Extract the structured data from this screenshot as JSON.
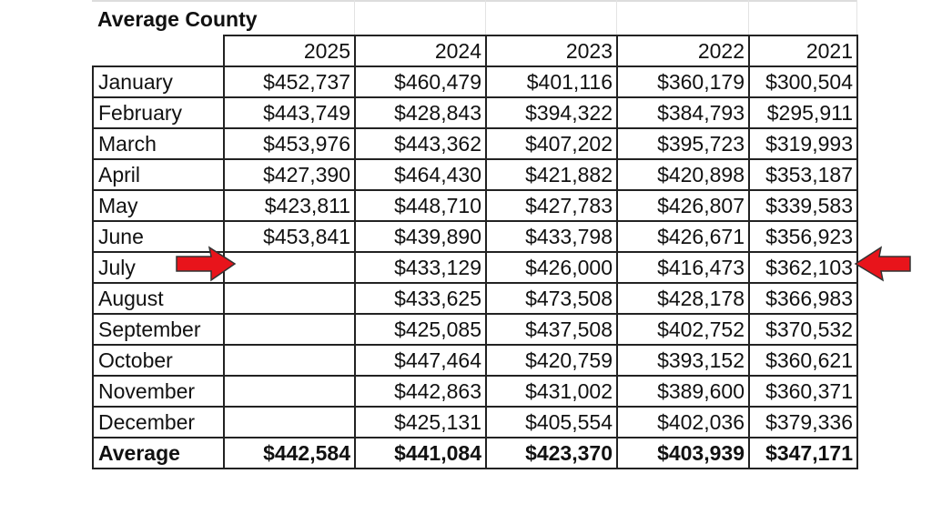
{
  "title": "Average County",
  "years": [
    "2025",
    "2024",
    "2023",
    "2022",
    "2021"
  ],
  "rows": [
    {
      "month": "January",
      "values": [
        "$452,737",
        "$460,479",
        "$401,116",
        "$360,179",
        "$300,504"
      ]
    },
    {
      "month": "February",
      "values": [
        "$443,749",
        "$428,843",
        "$394,322",
        "$384,793",
        "$295,911"
      ]
    },
    {
      "month": "March",
      "values": [
        "$453,976",
        "$443,362",
        "$407,202",
        "$395,723",
        "$319,993"
      ]
    },
    {
      "month": "April",
      "values": [
        "$427,390",
        "$464,430",
        "$421,882",
        "$420,898",
        "$353,187"
      ]
    },
    {
      "month": "May",
      "values": [
        "$423,811",
        "$448,710",
        "$427,783",
        "$426,807",
        "$339,583"
      ]
    },
    {
      "month": "June",
      "values": [
        "$453,841",
        "$439,890",
        "$433,798",
        "$426,671",
        "$356,923"
      ]
    },
    {
      "month": "July",
      "values": [
        "",
        "$433,129",
        "$426,000",
        "$416,473",
        "$362,103"
      ]
    },
    {
      "month": "August",
      "values": [
        "",
        "$433,625",
        "$473,508",
        "$428,178",
        "$366,983"
      ]
    },
    {
      "month": "September",
      "values": [
        "",
        "$425,085",
        "$437,508",
        "$402,752",
        "$370,532"
      ]
    },
    {
      "month": "October",
      "values": [
        "",
        "$447,464",
        "$420,759",
        "$393,152",
        "$360,621"
      ]
    },
    {
      "month": "November",
      "values": [
        "",
        "$442,863",
        "$431,002",
        "$389,600",
        "$360,371"
      ]
    },
    {
      "month": "December",
      "values": [
        "",
        "$425,131",
        "$405,554",
        "$402,036",
        "$379,336"
      ]
    }
  ],
  "average": {
    "label": "Average",
    "values": [
      "$442,584",
      "$441,084",
      "$423,370",
      "$403,939",
      "$347,171"
    ]
  },
  "annotations": {
    "arrow_color": "#e8141b",
    "highlighted_row": "June"
  }
}
